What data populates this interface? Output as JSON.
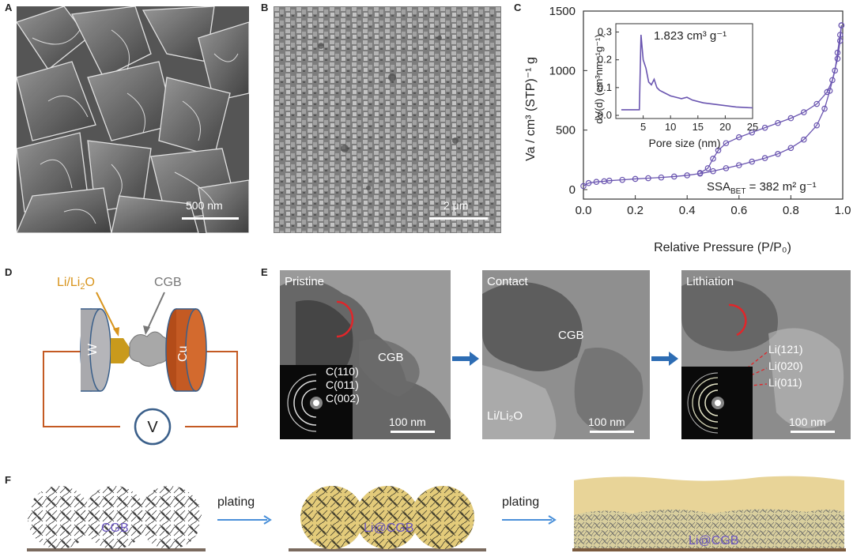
{
  "panels": {
    "A": {
      "label": "A",
      "scalebar": "500 nm"
    },
    "B": {
      "label": "B",
      "scalebar": "2 μm"
    },
    "C": {
      "label": "C"
    },
    "D": {
      "label": "D",
      "li_label_main": "Li/Li",
      "li_label_sub": "2",
      "li_label_end": "O",
      "cgb_label": "CGB",
      "w_label": "W",
      "cu_label": "Cu",
      "voltmeter_label": "V"
    },
    "E": {
      "label": "E",
      "pristine": {
        "title": "Pristine",
        "cgb": "CGB",
        "rings": [
          "C(110)",
          "C(011)",
          "C(002)"
        ],
        "scalebar": "100 nm"
      },
      "contact": {
        "title": "Contact",
        "cgb": "CGB",
        "bottom": "Li/Li₂O",
        "scalebar": "100 nm"
      },
      "lithiation": {
        "title": "Lithiation",
        "rings": [
          "Li(121)",
          "Li(020)",
          "Li(011)"
        ],
        "scalebar": "100 nm"
      }
    },
    "F": {
      "label": "F",
      "step1": "plating",
      "step2": "plating",
      "cgb": "CGB",
      "li_cgb1": "Li@CGB",
      "li_cgb2": "Li@CGB"
    }
  },
  "chart_data": {
    "type": "scatter",
    "title": "",
    "xlabel": "Relative Pressure (P/P₀)",
    "ylabel": "Va / cm³ (STP)⁻¹ g",
    "xlim": [
      0,
      1
    ],
    "ylim": [
      0,
      1500
    ],
    "xticks": [
      "0.0",
      "0.2",
      "0.4",
      "0.6",
      "0.8",
      "1.0"
    ],
    "yticks": [
      "0",
      "500",
      "1000",
      "1500"
    ],
    "annotation": "SSA",
    "annotation_sub": "BET",
    "annotation_end": " = 382 m² g⁻¹",
    "color": "#6a55b0",
    "series": [
      {
        "values": [
          [
            0.0,
            30
          ],
          [
            0.02,
            55
          ],
          [
            0.05,
            65
          ],
          [
            0.08,
            70
          ],
          [
            0.1,
            75
          ],
          [
            0.15,
            82
          ],
          [
            0.2,
            90
          ],
          [
            0.25,
            96
          ],
          [
            0.3,
            102
          ],
          [
            0.35,
            110
          ],
          [
            0.4,
            120
          ],
          [
            0.45,
            135
          ],
          [
            0.5,
            155
          ],
          [
            0.55,
            180
          ],
          [
            0.6,
            205
          ],
          [
            0.65,
            235
          ],
          [
            0.7,
            265
          ],
          [
            0.75,
            300
          ],
          [
            0.8,
            350
          ],
          [
            0.85,
            420
          ],
          [
            0.9,
            540
          ],
          [
            0.93,
            680
          ],
          [
            0.95,
            830
          ],
          [
            0.97,
            1000
          ],
          [
            0.98,
            1150
          ],
          [
            0.99,
            1300
          ],
          [
            0.995,
            1380
          ]
        ]
      },
      {
        "values": [
          [
            0.995,
            1380
          ],
          [
            0.99,
            1250
          ],
          [
            0.98,
            1100
          ],
          [
            0.96,
            920
          ],
          [
            0.94,
            820
          ],
          [
            0.9,
            720
          ],
          [
            0.85,
            650
          ],
          [
            0.8,
            600
          ],
          [
            0.75,
            560
          ],
          [
            0.7,
            520
          ],
          [
            0.65,
            480
          ],
          [
            0.6,
            440
          ],
          [
            0.55,
            390
          ],
          [
            0.52,
            330
          ],
          [
            0.5,
            260
          ],
          [
            0.48,
            180
          ],
          [
            0.45,
            140
          ]
        ]
      }
    ],
    "inset": {
      "title": "1.823 cm³ g⁻¹",
      "xlabel": "Pore size (nm)",
      "ylabel": "dV(d) (cm³nm⁻¹g⁻¹)",
      "xlim": [
        0,
        25
      ],
      "ylim": [
        0,
        0.33
      ],
      "xticks": [
        "5",
        "10",
        "15",
        "20",
        "25"
      ],
      "yticks": [
        "0.0",
        "0.1",
        "0.2",
        "0.3"
      ],
      "values": [
        [
          1,
          0.02
        ],
        [
          4.3,
          0.02
        ],
        [
          4.6,
          0.29
        ],
        [
          5,
          0.2
        ],
        [
          5.5,
          0.17
        ],
        [
          6,
          0.12
        ],
        [
          6.5,
          0.11
        ],
        [
          7,
          0.13
        ],
        [
          7.5,
          0.1
        ],
        [
          8,
          0.09
        ],
        [
          9,
          0.08
        ],
        [
          10,
          0.07
        ],
        [
          11,
          0.065
        ],
        [
          12,
          0.06
        ],
        [
          13,
          0.065
        ],
        [
          14,
          0.055
        ],
        [
          15,
          0.05
        ],
        [
          16,
          0.045
        ],
        [
          18,
          0.04
        ],
        [
          20,
          0.035
        ],
        [
          22,
          0.03
        ],
        [
          24,
          0.028
        ],
        [
          25,
          0.027
        ]
      ]
    }
  }
}
